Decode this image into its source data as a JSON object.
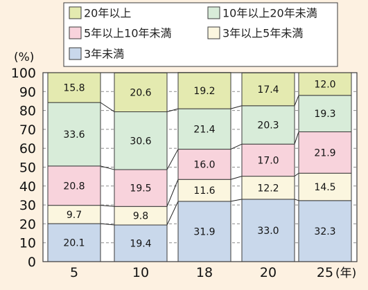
{
  "chart_data": {
    "type": "bar",
    "stacked": true,
    "categories": [
      "5",
      "10",
      "18",
      "20",
      "25"
    ],
    "x_unit": "(年)",
    "y_unit": "(%)",
    "ylim": [
      0,
      100
    ],
    "y_ticks": [
      0,
      10,
      20,
      30,
      40,
      50,
      60,
      70,
      80,
      90,
      100
    ],
    "grid": true,
    "legend_position": "top",
    "series": [
      {
        "name": "3年未満",
        "color": "#c9d8eb",
        "values": [
          20.1,
          19.4,
          31.9,
          33.0,
          32.3
        ],
        "labels": [
          "20.1",
          "19.4",
          "31.9",
          "33.0",
          "32.3"
        ]
      },
      {
        "name": "3年以上5年未満",
        "color": "#fbf6df",
        "values": [
          9.7,
          9.8,
          11.6,
          12.2,
          14.5
        ],
        "labels": [
          "9.7",
          "9.8",
          "11.6",
          "12.2",
          "14.5"
        ]
      },
      {
        "name": "5年以上10年未満",
        "color": "#f8d3dc",
        "values": [
          20.8,
          19.5,
          16.0,
          17.0,
          21.9
        ],
        "labels": [
          "20.8",
          "19.5",
          "16.0",
          "17.0",
          "21.9"
        ]
      },
      {
        "name": "10年以上20年未満",
        "color": "#d8ecd9",
        "values": [
          33.6,
          30.6,
          21.4,
          20.3,
          19.3
        ],
        "labels": [
          "33.6",
          "30.6",
          "21.4",
          "20.3",
          "19.3"
        ]
      },
      {
        "name": "20年以上",
        "color": "#e4eab0",
        "values": [
          15.8,
          20.6,
          19.2,
          17.4,
          12.0
        ],
        "labels": [
          "15.8",
          "20.6",
          "19.2",
          "17.4",
          "12.0"
        ]
      }
    ]
  }
}
